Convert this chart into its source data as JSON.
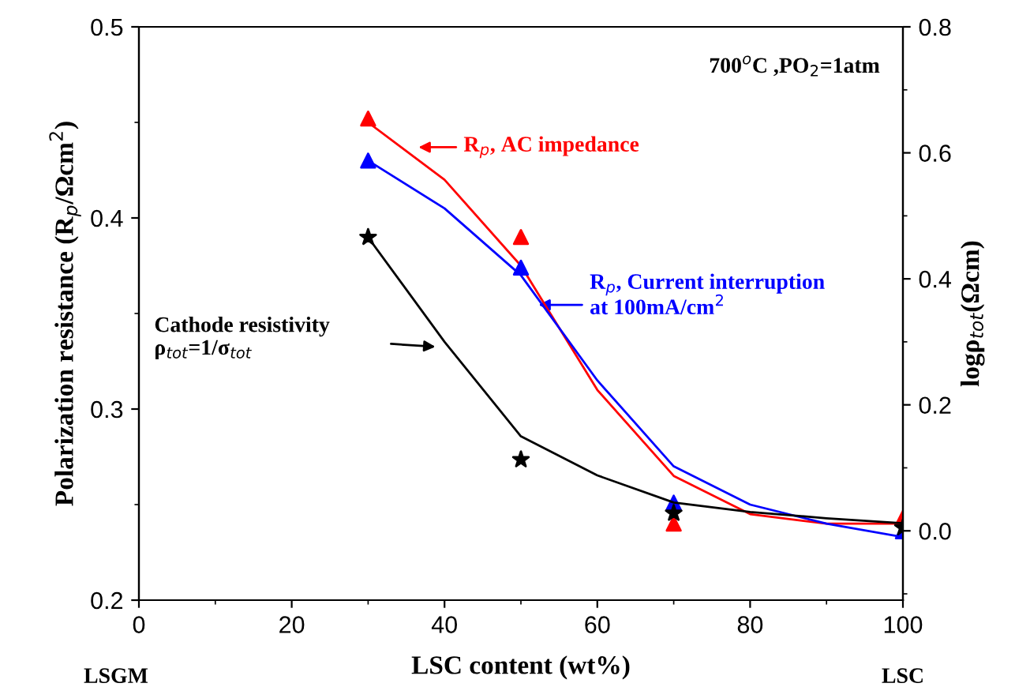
{
  "chart_data": {
    "type": "scatter",
    "xlabel": "LSC content (wt%)",
    "ylabel": "Polarization resistance (R$_{p}$/Ωcm$^{2}$)",
    "y2label": "logρ$_{tot}$(Ωcm)",
    "xlim": [
      0,
      100
    ],
    "xticks": [
      0,
      20,
      40,
      60,
      80,
      100
    ],
    "ylim": [
      0.2,
      0.5
    ],
    "yticks": [
      0.2,
      0.3,
      0.4,
      0.5
    ],
    "y2lim": [
      -0.11,
      0.8
    ],
    "y2ticks": [
      {
        "value": 0,
        "label": "0.0"
      },
      0.2,
      0.4,
      0.6,
      0.8
    ],
    "legend": false,
    "grid": false,
    "series": [
      {
        "marker": "triangle",
        "color": "#ff0000",
        "x": [
          30,
          50,
          70,
          100
        ],
        "values": [
          0.452,
          0.39,
          0.24,
          0.243
        ]
      },
      {
        "marker": "triangle",
        "color": "#0000ff",
        "x": [
          30,
          50,
          70,
          100
        ],
        "values": [
          0.43,
          0.374,
          0.251,
          0.236
        ]
      },
      {
        "marker": "star",
        "color": "#000000",
        "axis": "y2",
        "x": [
          30,
          50,
          70,
          100
        ],
        "values": [
          0.466,
          0.113,
          0.028,
          0.005
        ]
      },
      {
        "type": "line",
        "marker": "none",
        "color": "#ff0000",
        "x": [
          30,
          40,
          50,
          60,
          70,
          80,
          90,
          100
        ],
        "values": [
          0.45,
          0.42,
          0.375,
          0.31,
          0.265,
          0.245,
          0.24,
          0.24
        ]
      },
      {
        "type": "line",
        "marker": "none",
        "color": "#0000ff",
        "x": [
          30,
          40,
          50,
          60,
          70,
          80,
          90,
          100
        ],
        "values": [
          0.43,
          0.405,
          0.37,
          0.315,
          0.27,
          0.25,
          0.24,
          0.233
        ]
      },
      {
        "type": "line",
        "marker": "none",
        "color": "#000000",
        "axis": "y2",
        "x": [
          30,
          40,
          50,
          60,
          70,
          80,
          90,
          100
        ],
        "values": [
          0.466,
          0.3,
          0.15,
          0.088,
          0.045,
          0.03,
          0.02,
          0.012
        ]
      }
    ],
    "annotations": [
      "700$^{o}$C ,PO$_{2}$=1atm",
      "R$_{p}$, AC impedance",
      "R$_{p}$, Current interruption\nat 100mA/cm$^{2}$",
      "Cathode resistivity\nρ$_{tot}$=1/σ$_{tot}$",
      "LSGM",
      "LSC"
    ]
  }
}
